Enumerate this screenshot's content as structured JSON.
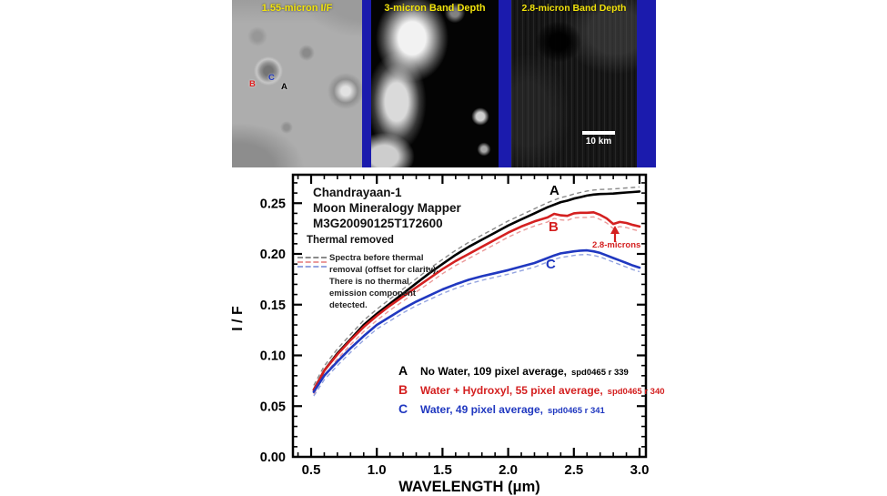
{
  "top_panels": {
    "backdrop_color": "#1b1bad",
    "label_color": "#f2e30c",
    "panels": [
      {
        "title": "1.55-micron I/F",
        "markers": [
          {
            "text": "B",
            "color": "#e02020"
          },
          {
            "text": "C",
            "color": "#2038c0"
          },
          {
            "text": "A",
            "color": "#000000"
          }
        ]
      },
      {
        "title": "3-micron Band Depth"
      },
      {
        "title": "2.8-micron Band Depth",
        "scale_bar_label": "10 km"
      }
    ]
  },
  "chart": {
    "title_lines": [
      "Chandrayaan-1",
      "Moon Mineralogy Mapper",
      "M3G20090125T172600"
    ],
    "thermal_removed_label": "Thermal removed",
    "note_lines": [
      "Spectra before thermal",
      "removal (offset for clarity).",
      "There is no thermal",
      "emission component",
      "detected."
    ]
  },
  "chart_data": {
    "type": "line",
    "title": "Chandrayaan-1 Moon Mineralogy Mapper M3G20090125T172600",
    "xlabel": "WAVELENGTH (μm)",
    "ylabel": "I / F",
    "xlim": [
      0.36,
      3.05
    ],
    "ylim": [
      0.0,
      0.278
    ],
    "grid": false,
    "x_ticks": [
      0.5,
      1.0,
      1.5,
      2.0,
      2.5,
      3.0
    ],
    "x_tick_labels": [
      "0.5",
      "1.0",
      "1.5",
      "2.0",
      "2.5",
      "3.0"
    ],
    "y_ticks": [
      0.0,
      0.05,
      0.1,
      0.15,
      0.2,
      0.25
    ],
    "y_tick_labels": [
      "0.00",
      "0.05",
      "0.10",
      "0.15",
      "0.20",
      "0.25"
    ],
    "x_minor_step": 0.1,
    "y_minor_step": 0.01,
    "x": [
      0.52,
      0.6,
      0.7,
      0.8,
      0.9,
      1.0,
      1.1,
      1.2,
      1.3,
      1.4,
      1.5,
      1.6,
      1.7,
      1.8,
      1.9,
      2.0,
      2.1,
      2.2,
      2.3,
      2.35,
      2.4,
      2.45,
      2.5,
      2.55,
      2.6,
      2.65,
      2.7,
      2.75,
      2.8,
      2.85,
      2.9,
      2.95,
      3.0
    ],
    "series": [
      {
        "name": "A",
        "label": "No Water, 109 pixel average,",
        "sublabel": "spd0465 r 339",
        "color": "#000000",
        "dashed_color": "#8a8a8a",
        "pre_thermal_offset": 0.0045,
        "values": [
          0.066,
          0.085,
          0.102,
          0.116,
          0.13,
          0.141,
          0.151,
          0.161,
          0.171,
          0.181,
          0.19,
          0.199,
          0.207,
          0.214,
          0.221,
          0.228,
          0.234,
          0.24,
          0.246,
          0.2485,
          0.251,
          0.2525,
          0.2545,
          0.256,
          0.2575,
          0.2585,
          0.259,
          0.2592,
          0.2595,
          0.26,
          0.2605,
          0.261,
          0.2615
        ]
      },
      {
        "name": "B",
        "label": "Water + Hydroxyl, 55 pixel average,",
        "sublabel": "spd0465 r 340",
        "color": "#d42020",
        "dashed_color": "#eb9a9a",
        "pre_thermal_offset": -0.0045,
        "values": [
          0.066,
          0.085,
          0.101,
          0.115,
          0.128,
          0.139,
          0.149,
          0.158,
          0.167,
          0.176,
          0.185,
          0.193,
          0.2,
          0.207,
          0.214,
          0.221,
          0.227,
          0.232,
          0.236,
          0.2395,
          0.238,
          0.2375,
          0.24,
          0.2405,
          0.2405,
          0.241,
          0.2385,
          0.235,
          0.2295,
          0.2315,
          0.2305,
          0.2285,
          0.227
        ]
      },
      {
        "name": "C",
        "label": "Water, 49 pixel average,",
        "sublabel": "spd0465 r 341",
        "color": "#2038c0",
        "dashed_color": "#94a4e0",
        "pre_thermal_offset": -0.004,
        "values": [
          0.064,
          0.08,
          0.094,
          0.107,
          0.119,
          0.13,
          0.138,
          0.146,
          0.153,
          0.159,
          0.165,
          0.17,
          0.1745,
          0.178,
          0.181,
          0.184,
          0.1875,
          0.191,
          0.196,
          0.1985,
          0.2005,
          0.2015,
          0.2025,
          0.2032,
          0.2035,
          0.2025,
          0.201,
          0.1985,
          0.196,
          0.1935,
          0.191,
          0.1885,
          0.1865
        ]
      }
    ],
    "annotations": {
      "wavelength_2_8": "2.8-microns"
    },
    "legend_position": "lower-right-inside"
  }
}
